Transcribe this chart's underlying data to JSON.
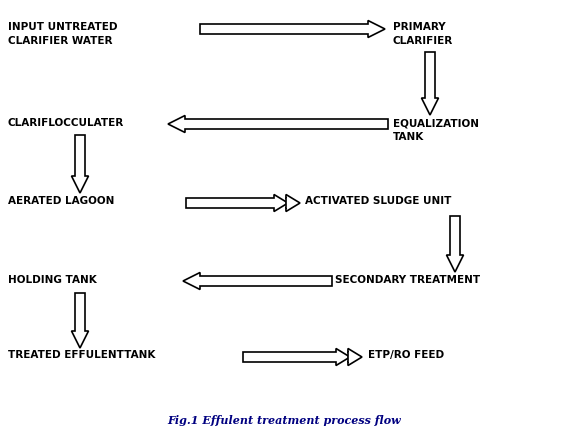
{
  "title": "Fig.1 Effulent treatment process flow",
  "title_color": "#000080",
  "background_color": "#ffffff",
  "text_color": "#000000",
  "arrow_color": "#000000",
  "arrow_fill": "#ffffff",
  "labels": {
    "input_untreated": "INPUT UNTREATED",
    "clarifier_water": "CLARIFIER WATER",
    "primary": "PRIMARY",
    "clarifier": "CLARIFIER",
    "clariflocculater": "CLARIFLOCCULATER",
    "equalization": "EQUALIZATION",
    "tank": "TANK",
    "aerated_lagoon": "AERATED LAGOON",
    "activated_sludge": "ACTIVATED SLUDGE UNIT",
    "holding_tank": "HOLDING TANK",
    "secondary_treatment": "SECONDARY TREATMENT",
    "treated_effulent": "TREATED EFFULENTTANK",
    "etp_ro": "ETP/RO FEED"
  },
  "figsize": [
    5.69,
    4.43
  ],
  "dpi": 100
}
